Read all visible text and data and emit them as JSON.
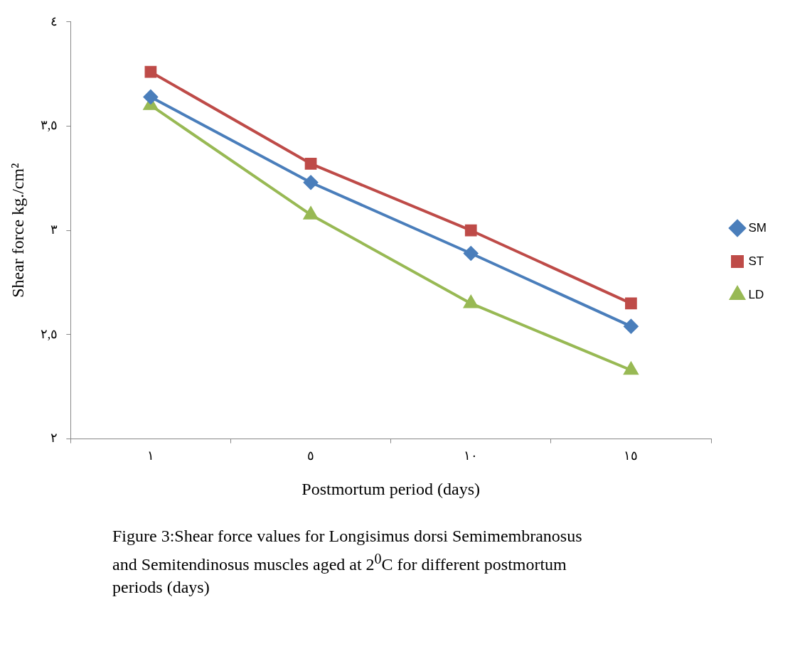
{
  "chart_data": {
    "type": "line",
    "xlabel": "Postmortum period (days)",
    "ylabel": "Shear force kg./cm²",
    "categories": [
      "١",
      "٥",
      "١٠",
      "١٥"
    ],
    "series": [
      {
        "name": "SM",
        "color": "#4a7ebb",
        "marker": "diamond",
        "values": [
          3.64,
          3.23,
          2.89,
          2.54
        ]
      },
      {
        "name": "ST",
        "color": "#be4b48",
        "marker": "square",
        "values": [
          3.76,
          3.32,
          3.0,
          2.65
        ]
      },
      {
        "name": "LD",
        "color": "#98b954",
        "marker": "triangle",
        "values": [
          3.6,
          3.075,
          2.65,
          2.33
        ]
      }
    ],
    "ylim": [
      2,
      4
    ],
    "yticks": [
      {
        "value": 2,
        "label": "٢"
      },
      {
        "value": 2.5,
        "label": "٢,٥"
      },
      {
        "value": 3,
        "label": "٣"
      },
      {
        "value": 3.5,
        "label": "٣,٥"
      },
      {
        "value": 4,
        "label": "٤"
      }
    ],
    "grid": false,
    "legend": "right",
    "line_style": "solid",
    "annotations": [
      "Figure 3:Shear force values for Longisimus dorsi Semimembranosus  and Semitendinosus muscles aged at 2$^{0}$C for different postmortum periods (days)"
    ]
  }
}
